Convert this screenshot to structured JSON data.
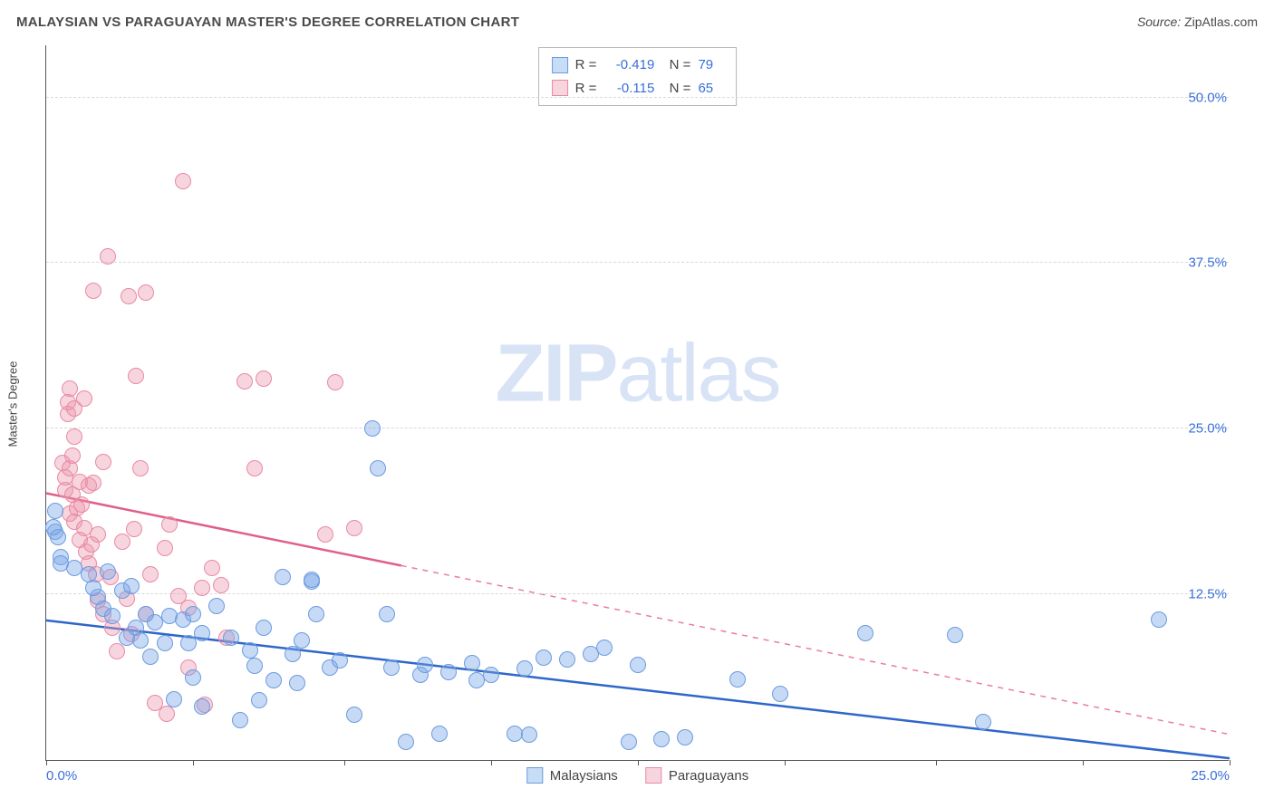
{
  "header": {
    "title": "MALAYSIAN VS PARAGUAYAN MASTER'S DEGREE CORRELATION CHART",
    "source_label": "Source:",
    "source_value": "ZipAtlas.com"
  },
  "watermark": {
    "bold": "ZIP",
    "light": "atlas"
  },
  "axes": {
    "ylabel": "Master's Degree",
    "xlim": [
      0,
      25
    ],
    "ylim": [
      0,
      54
    ],
    "yticks": [
      {
        "v": 12.5,
        "label": "12.5%"
      },
      {
        "v": 25.0,
        "label": "25.0%"
      },
      {
        "v": 37.5,
        "label": "37.5%"
      },
      {
        "v": 50.0,
        "label": "50.0%"
      }
    ],
    "ytick_color": "#3a6fd8",
    "xtick_positions": [
      0,
      3.1,
      6.3,
      9.4,
      12.5,
      15.6,
      18.8,
      21.9,
      25
    ],
    "xtick_labels": [
      {
        "v": 0,
        "label": "0.0%"
      },
      {
        "v": 25,
        "label": "25.0%"
      }
    ],
    "grid_color": "#d9d9d9",
    "axis_color": "#555555"
  },
  "series": [
    {
      "id": "malaysians",
      "label": "Malaysians",
      "color_fill": "rgba(122,168,230,0.42)",
      "color_stroke": "#6b9be0",
      "line_color": "#2e67c9",
      "r_value": "-0.419",
      "n_value": "79",
      "marker_r": 9,
      "regression": {
        "x1": 0,
        "y1": 10.6,
        "x2": 25,
        "y2": 0.2,
        "dash_from_x": 25
      },
      "points": [
        [
          0.2,
          17.2
        ],
        [
          0.25,
          16.8
        ],
        [
          0.3,
          15.3
        ],
        [
          0.2,
          18.8
        ],
        [
          0.3,
          14.8
        ],
        [
          0.15,
          17.6
        ],
        [
          0.6,
          14.5
        ],
        [
          0.9,
          14.0
        ],
        [
          1.1,
          12.3
        ],
        [
          1.3,
          14.2
        ],
        [
          1.0,
          13.0
        ],
        [
          1.2,
          11.4
        ],
        [
          1.4,
          10.9
        ],
        [
          1.6,
          12.8
        ],
        [
          1.7,
          9.2
        ],
        [
          1.8,
          13.1
        ],
        [
          1.9,
          10.0
        ],
        [
          2.0,
          9.0
        ],
        [
          2.1,
          11.0
        ],
        [
          2.2,
          7.8
        ],
        [
          2.3,
          10.4
        ],
        [
          2.5,
          8.8
        ],
        [
          2.6,
          10.9
        ],
        [
          2.7,
          4.6
        ],
        [
          2.9,
          10.6
        ],
        [
          3.0,
          8.8
        ],
        [
          3.1,
          6.2
        ],
        [
          3.1,
          11.0
        ],
        [
          3.3,
          4.0
        ],
        [
          3.3,
          9.6
        ],
        [
          3.6,
          11.6
        ],
        [
          3.9,
          9.2
        ],
        [
          4.1,
          3.0
        ],
        [
          4.3,
          8.3
        ],
        [
          4.4,
          7.1
        ],
        [
          4.5,
          4.5
        ],
        [
          4.6,
          10.0
        ],
        [
          4.8,
          6.0
        ],
        [
          5.0,
          13.8
        ],
        [
          5.2,
          8.0
        ],
        [
          5.3,
          5.8
        ],
        [
          5.4,
          9.0
        ],
        [
          5.6,
          13.5
        ],
        [
          5.6,
          13.6
        ],
        [
          5.7,
          11.0
        ],
        [
          6.0,
          7.0
        ],
        [
          6.2,
          7.5
        ],
        [
          6.5,
          3.4
        ],
        [
          6.9,
          25.0
        ],
        [
          7.0,
          22.0
        ],
        [
          7.2,
          11.0
        ],
        [
          7.3,
          7.0
        ],
        [
          7.6,
          1.4
        ],
        [
          7.9,
          6.4
        ],
        [
          8.0,
          7.2
        ],
        [
          8.3,
          2.0
        ],
        [
          8.5,
          6.6
        ],
        [
          9.0,
          7.3
        ],
        [
          9.1,
          6.0
        ],
        [
          9.4,
          6.4
        ],
        [
          9.9,
          2.0
        ],
        [
          10.1,
          6.9
        ],
        [
          10.2,
          1.9
        ],
        [
          10.5,
          7.7
        ],
        [
          11.0,
          7.6
        ],
        [
          11.5,
          8.0
        ],
        [
          11.8,
          8.5
        ],
        [
          12.3,
          1.4
        ],
        [
          12.5,
          7.2
        ],
        [
          13.0,
          1.6
        ],
        [
          13.5,
          1.7
        ],
        [
          14.6,
          6.1
        ],
        [
          15.5,
          5.0
        ],
        [
          17.3,
          9.6
        ],
        [
          19.2,
          9.4
        ],
        [
          19.8,
          2.9
        ],
        [
          23.5,
          10.6
        ]
      ]
    },
    {
      "id": "paraguayans",
      "label": "Paraguayans",
      "color_fill": "rgba(236,150,173,0.40)",
      "color_stroke": "#e989a5",
      "line_color": "#e15f86",
      "r_value": "-0.115",
      "n_value": "65",
      "marker_r": 9,
      "regression": {
        "x1": 0,
        "y1": 20.2,
        "x2": 25,
        "y2": 2.0,
        "dash_from_x": 7.5
      },
      "points": [
        [
          0.35,
          22.4
        ],
        [
          0.4,
          20.4
        ],
        [
          0.4,
          21.3
        ],
        [
          0.45,
          26.1
        ],
        [
          0.45,
          27.0
        ],
        [
          0.5,
          22.0
        ],
        [
          0.5,
          18.6
        ],
        [
          0.5,
          28.0
        ],
        [
          0.55,
          20.0
        ],
        [
          0.55,
          23.0
        ],
        [
          0.6,
          26.5
        ],
        [
          0.6,
          24.4
        ],
        [
          0.6,
          18.0
        ],
        [
          0.65,
          19.0
        ],
        [
          0.7,
          21.0
        ],
        [
          0.7,
          16.6
        ],
        [
          0.75,
          19.3
        ],
        [
          0.8,
          27.3
        ],
        [
          0.8,
          17.5
        ],
        [
          0.85,
          15.7
        ],
        [
          0.9,
          14.8
        ],
        [
          0.9,
          20.7
        ],
        [
          0.95,
          16.3
        ],
        [
          1.0,
          20.9
        ],
        [
          1.0,
          35.4
        ],
        [
          1.05,
          14.0
        ],
        [
          1.1,
          17.0
        ],
        [
          1.1,
          12.0
        ],
        [
          1.2,
          22.5
        ],
        [
          1.2,
          11.0
        ],
        [
          1.3,
          38.0
        ],
        [
          1.35,
          13.8
        ],
        [
          1.4,
          10.0
        ],
        [
          1.5,
          8.2
        ],
        [
          1.6,
          16.5
        ],
        [
          1.7,
          12.2
        ],
        [
          1.75,
          35.0
        ],
        [
          1.8,
          9.5
        ],
        [
          1.85,
          17.4
        ],
        [
          1.9,
          29.0
        ],
        [
          2.0,
          22.0
        ],
        [
          2.1,
          35.3
        ],
        [
          2.1,
          11.0
        ],
        [
          2.2,
          14.0
        ],
        [
          2.3,
          4.3
        ],
        [
          2.5,
          16.0
        ],
        [
          2.55,
          3.5
        ],
        [
          2.6,
          17.8
        ],
        [
          2.8,
          12.4
        ],
        [
          2.9,
          43.7
        ],
        [
          3.0,
          7.0
        ],
        [
          3.0,
          11.5
        ],
        [
          3.3,
          13.0
        ],
        [
          3.35,
          4.2
        ],
        [
          3.5,
          14.5
        ],
        [
          3.7,
          13.2
        ],
        [
          3.8,
          9.2
        ],
        [
          4.2,
          28.6
        ],
        [
          4.4,
          22.0
        ],
        [
          4.6,
          28.8
        ],
        [
          5.9,
          17.0
        ],
        [
          6.1,
          28.5
        ],
        [
          6.5,
          17.5
        ]
      ]
    }
  ],
  "legend": {
    "swatch_blue_fill": "#c7dcf5",
    "swatch_blue_border": "#6b9be0",
    "swatch_pink_fill": "#f7d5de",
    "swatch_pink_border": "#e989a5"
  }
}
